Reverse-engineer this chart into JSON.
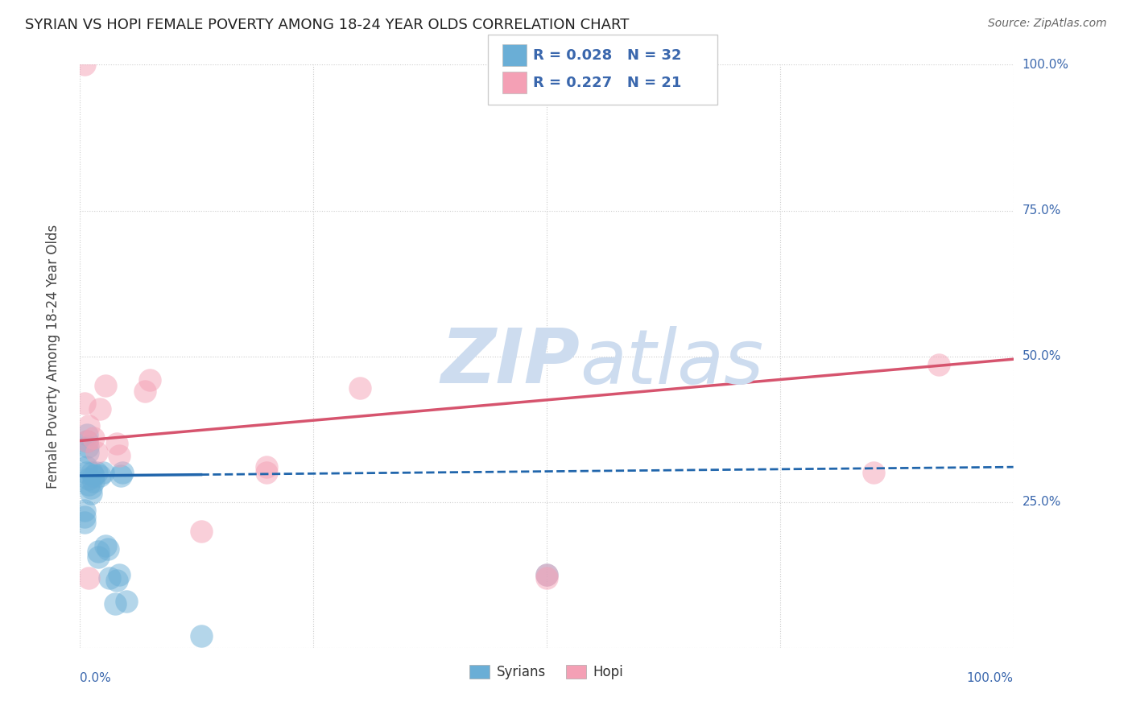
{
  "title": "SYRIAN VS HOPI FEMALE POVERTY AMONG 18-24 YEAR OLDS CORRELATION CHART",
  "source": "Source: ZipAtlas.com",
  "ylabel": "Female Poverty Among 18-24 Year Olds",
  "xlim": [
    0.0,
    1.0
  ],
  "ylim": [
    0.0,
    1.0
  ],
  "syrians_color": "#6aaed6",
  "hopi_color": "#f4a0b5",
  "syrians_line_color": "#2166ac",
  "hopi_line_color": "#d6546e",
  "label_color": "#3a67ad",
  "background_color": "#ffffff",
  "watermark_zip": "ZIP",
  "watermark_atlas": "atlas",
  "watermark_color": "#cddcef",
  "syrians_x": [
    0.005,
    0.005,
    0.005,
    0.007,
    0.007,
    0.008,
    0.008,
    0.009,
    0.009,
    0.01,
    0.01,
    0.012,
    0.012,
    0.013,
    0.015,
    0.015,
    0.018,
    0.02,
    0.02,
    0.022,
    0.025,
    0.028,
    0.03,
    0.032,
    0.038,
    0.04,
    0.042,
    0.044,
    0.046,
    0.05,
    0.13,
    0.5
  ],
  "syrians_y": [
    0.215,
    0.225,
    0.235,
    0.3,
    0.31,
    0.355,
    0.365,
    0.335,
    0.345,
    0.28,
    0.29,
    0.265,
    0.275,
    0.3,
    0.285,
    0.295,
    0.3,
    0.155,
    0.165,
    0.295,
    0.3,
    0.175,
    0.17,
    0.12,
    0.075,
    0.115,
    0.125,
    0.295,
    0.3,
    0.08,
    0.02,
    0.125
  ],
  "hopi_x": [
    0.005,
    0.005,
    0.008,
    0.01,
    0.015,
    0.018,
    0.022,
    0.028,
    0.04,
    0.042,
    0.07,
    0.075,
    0.13,
    0.2,
    0.2,
    0.3,
    0.5,
    0.5,
    0.85,
    0.92,
    0.01
  ],
  "hopi_y": [
    0.42,
    1.0,
    0.355,
    0.38,
    0.36,
    0.335,
    0.41,
    0.45,
    0.35,
    0.33,
    0.44,
    0.46,
    0.2,
    0.31,
    0.3,
    0.445,
    0.12,
    0.125,
    0.3,
    0.485,
    0.12
  ],
  "syrians_line_x0": 0.0,
  "syrians_line_x_solid_end": 0.13,
  "syrians_line_y0": 0.295,
  "syrians_line_y1": 0.31,
  "hopi_line_y0": 0.355,
  "hopi_line_y1": 0.495
}
